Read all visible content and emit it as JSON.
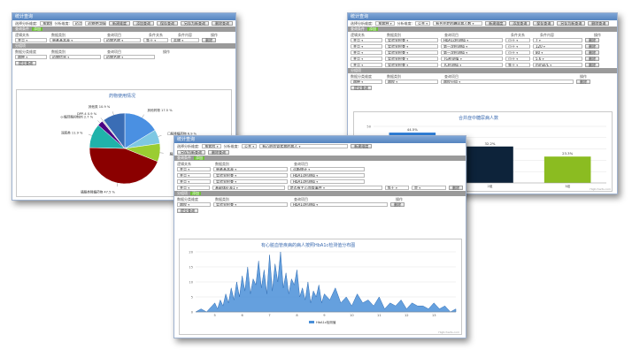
{
  "win1": {
    "title": "统计查询",
    "top": {
      "l1": "选择分析维度:",
      "v1": "按病种",
      "l2": "分析维度:",
      "v2": "药品",
      "v3": "药物使用情况",
      "b1": "新建维度",
      "b2": "添加查询",
      "b3": "保存查询",
      "b4": "另存为新查询",
      "b5": "删除查询"
    },
    "sec1": {
      "label": "查询条件",
      "tag": "添加"
    },
    "head1": [
      "逻辑关系",
      "数据类别",
      "查询项目",
      "条件关系",
      "条件内容",
      "操作"
    ],
    "row1": {
      "a": "并且",
      "b": "患者基本表",
      "c": "药物名称",
      "d": "等于",
      "e": "盐酸",
      "btn": "删除"
    },
    "sec2": {
      "label": "分组项"
    },
    "head2": [
      "数据分类维度",
      "数据类别",
      "查询项目",
      "操作"
    ],
    "row2": {
      "a": "病种",
      "b": "药物信息",
      "c": "药物名称"
    },
    "query_btn": "提交查询",
    "chart_title": "药物使用情况",
    "pie_labels": [
      "其他药物 17.5 %",
      "口服降糖药物 6.9 %",
      "胰岛素类 8.9 %",
      "磺脲类降糖药物 47.5 %",
      "双胍类 11.9 %",
      "α-糖苷酶抑制剂 2.7 %",
      "DPP-4 0.9 %",
      "其他类 10.9 %"
    ]
  },
  "win2": {
    "title": "统计查询",
    "top": {
      "l1": "选择分析维度:",
      "v1": "按病种",
      "l2": "分析维度:",
      "v2": "公共",
      "v3": "有合并症的糖尿病人数",
      "b1": "新建维度",
      "b2": "添加查询",
      "b3": "保存查询",
      "b4": "另存为新查询",
      "b5": "删除查询"
    },
    "sec1": {
      "label": "查询条件",
      "tag": "添加"
    },
    "head1": [
      "逻辑关系",
      "数据类别",
      "查询项目",
      "条件关系",
      "条件内容",
      "操作"
    ],
    "rows": [
      {
        "a": "并且",
        "b": "实验室检查",
        "c": "HbA1c检测值",
        "d": "小于",
        "e": "7",
        "btn": "删除"
      },
      {
        "a": "并且",
        "b": "实验室检查",
        "c": "第一次检测值",
        "d": "小于",
        "e": "120",
        "btn": "删除"
      },
      {
        "a": "并且",
        "b": "实验室检查",
        "c": "第一次检测值",
        "d": "小于",
        "e": "80",
        "btn": "删除"
      },
      {
        "a": "并且",
        "b": "实验室检查",
        "c": "TG检测值",
        "d": "小于",
        "e": "5.6",
        "btn": "删除"
      },
      {
        "a": "并且",
        "b": "实验室检查",
        "c": "TC检测值",
        "d": "等于",
        "e": "mmol/L",
        "btn": "删除"
      }
    ],
    "sec2": {
      "label": "分组项"
    },
    "head2": [
      "数据分类维度",
      "数据类别",
      "查询项目",
      "操作"
    ],
    "row2": {
      "a": "病种",
      "b": "病程",
      "c": "病程分组",
      "btn": "删除"
    },
    "query_btn": "提交查询",
    "chart_title": "合并症中糖尿病人数",
    "bar_labels": [
      "44.5%",
      "32.2%",
      "23.3%"
    ],
    "x_labels": [
      "1组",
      "2组",
      "3组"
    ],
    "y_ticks": [
      "0",
      "10",
      "20",
      "30",
      "40",
      "50"
    ],
    "credit": "Highcharts.com"
  },
  "win3": {
    "title": "统计查询",
    "top": {
      "l1": "选择分析维度:",
      "v1": "按病程",
      "l2": "分析维度:",
      "v2": "公共",
      "v3": "有心脏血管疾病的病人",
      "b1": "新建维度",
      "b2": "另存为新查询",
      "b3": "删除查询"
    },
    "sec1": {
      "label": "查询条件",
      "tag": "添加"
    },
    "head1": [
      "逻辑关系",
      "数据类别",
      "查询项目"
    ],
    "rows": [
      {
        "a": "并且",
        "b": "患者基本表",
        "c": "诊断统计"
      },
      {
        "a": "并且",
        "b": "实验室检查",
        "c": "HbA1c检测值"
      },
      {
        "a": "并且",
        "b": "实验室检查",
        "c": "HbA1c检测值"
      },
      {
        "a": "并且",
        "b": "基础体征表1",
        "c": "是否有主心血管事件",
        "d": "等于",
        "e": "是",
        "btn": "删除"
      }
    ],
    "sec2": {
      "label": "分组项",
      "tag": "添加"
    },
    "head2": [
      "数据分类维度",
      "数据类别",
      "查询项目",
      "操作"
    ],
    "row2": {
      "a": "病程",
      "b": "实验室检查",
      "c": "HbA1c检测值",
      "btn": "删除"
    },
    "query_btn": "提交查询",
    "chart_title": "有心脏血管疾病的病人按照HbA1c检测值分布图",
    "x_ticks": [
      "5",
      "6",
      "7",
      "8",
      "9",
      "10",
      "11",
      "12",
      "13"
    ],
    "y_ticks": [
      "0",
      "5",
      "10",
      "15",
      "20"
    ],
    "legend": "HbA1c检测值",
    "credit": "Highcharts.com"
  },
  "chart_data": [
    {
      "type": "pie",
      "title": "药物使用情况",
      "categories": [
        "其他药物",
        "口服降糖药物",
        "胰岛素类",
        "磺脲类降糖药物",
        "双胍类",
        "α-糖苷酶抑制剂",
        "DPP-4",
        "其他类"
      ],
      "values": [
        17.5,
        6.9,
        8.9,
        47.5,
        11.9,
        2.7,
        0.9,
        10.9
      ],
      "colors": [
        "#4a90e2",
        "#7ec8e3",
        "#9acd32",
        "#8b0000",
        "#20b2aa",
        "#4b0082",
        "#d3d3d3",
        "#3a6db5"
      ]
    },
    {
      "type": "bar",
      "title": "合并症中糖尿病人数",
      "categories": [
        "1组",
        "2组",
        "3组"
      ],
      "values": [
        44.5,
        32.2,
        23.3
      ],
      "colors": [
        "#2f7ed8",
        "#0d233a",
        "#8bbc21"
      ],
      "ylim": [
        0,
        50
      ]
    },
    {
      "type": "area",
      "title": "有心脏血管疾病的病人按照HbA1c检测值分布图",
      "series_name": "HbA1c检测值",
      "xlim": [
        4.3,
        13.8
      ],
      "ylim": [
        0,
        20
      ],
      "x": [
        4.3,
        4.5,
        4.7,
        4.9,
        5.0,
        5.1,
        5.2,
        5.3,
        5.4,
        5.5,
        5.6,
        5.7,
        5.8,
        5.9,
        6.0,
        6.1,
        6.2,
        6.3,
        6.4,
        6.5,
        6.6,
        6.7,
        6.8,
        6.9,
        7.0,
        7.1,
        7.2,
        7.3,
        7.4,
        7.5,
        7.6,
        7.7,
        7.8,
        7.9,
        8.0,
        8.1,
        8.2,
        8.3,
        8.4,
        8.5,
        8.6,
        8.7,
        8.8,
        8.9,
        9.0,
        9.2,
        9.4,
        9.6,
        9.8,
        10.0,
        10.2,
        10.4,
        10.6,
        10.8,
        11.0,
        11.2,
        11.4,
        11.6,
        11.8,
        12.0,
        12.2,
        12.4,
        12.6,
        12.8,
        13.0,
        13.2,
        13.4,
        13.6,
        13.8
      ],
      "y": [
        0,
        1,
        0,
        2,
        3,
        1,
        4,
        2,
        6,
        3,
        8,
        4,
        10,
        5,
        12,
        7,
        15,
        6,
        11,
        9,
        17,
        8,
        14,
        6,
        19,
        7,
        16,
        10,
        20,
        8,
        13,
        6,
        11,
        9,
        14,
        5,
        8,
        4,
        10,
        3,
        7,
        5,
        9,
        3,
        6,
        4,
        8,
        3,
        5,
        2,
        6,
        3,
        4,
        2,
        5,
        1,
        3,
        2,
        4,
        1,
        3,
        2,
        2,
        1,
        3,
        1,
        2,
        0,
        1
      ]
    }
  ]
}
